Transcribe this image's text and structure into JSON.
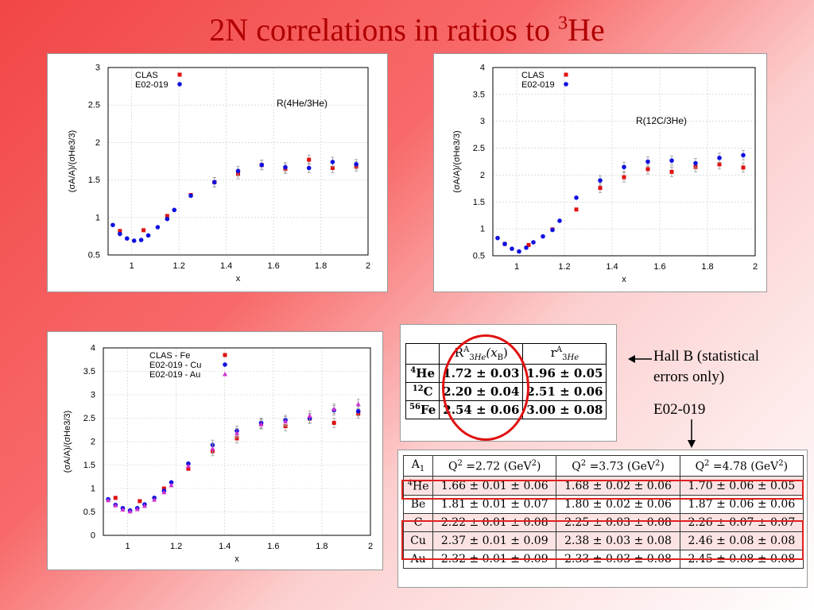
{
  "slide": {
    "title_main": "2N correlations in ratios to ",
    "title_sup": "3",
    "title_end": "He"
  },
  "colors": {
    "clas": "#e01010",
    "e02019": "#1010e0",
    "au": "#d030d0",
    "ring": "#e01010"
  },
  "chart_data": [
    {
      "type": "scatter",
      "annotation": "R(4He/3He)",
      "xlabel": "x",
      "ylabel": "(σA/A)/(σHe3/3)",
      "xlim": [
        0.9,
        2.0
      ],
      "ylim": [
        0.5,
        3.0
      ],
      "xticks": [
        "1",
        "1.2",
        "1.4",
        "1.6",
        "1.8",
        "2"
      ],
      "yticks": [
        "0.5",
        "1",
        "1.5",
        "2",
        "2.5",
        "3"
      ],
      "grid": true,
      "legend": "top-left",
      "series": [
        {
          "name": "CLAS",
          "marker": "square",
          "x": [
            0.95,
            1.05,
            1.15,
            1.25,
            1.35,
            1.45,
            1.55,
            1.65,
            1.75,
            1.85,
            1.95
          ],
          "y": [
            0.82,
            0.83,
            1.02,
            1.3,
            1.47,
            1.58,
            1.7,
            1.65,
            1.77,
            1.66,
            1.68
          ]
        },
        {
          "name": "E02-019",
          "marker": "circle",
          "x": [
            0.92,
            0.95,
            0.98,
            1.01,
            1.04,
            1.07,
            1.11,
            1.15,
            1.18,
            1.25,
            1.35,
            1.45,
            1.55,
            1.65,
            1.75,
            1.85,
            1.95
          ],
          "y": [
            0.9,
            0.78,
            0.72,
            0.69,
            0.7,
            0.76,
            0.87,
            0.98,
            1.1,
            1.29,
            1.47,
            1.62,
            1.7,
            1.67,
            1.66,
            1.74,
            1.71
          ]
        }
      ]
    },
    {
      "type": "scatter",
      "annotation": "R(12C/3He)",
      "xlabel": "x",
      "ylabel": "(σA/A)/(σHe3/3)",
      "xlim": [
        0.9,
        2.0
      ],
      "ylim": [
        0.5,
        4.0
      ],
      "xticks": [
        "1",
        "1.2",
        "1.4",
        "1.6",
        "1.8",
        "2"
      ],
      "yticks": [
        "0.5",
        "1",
        "1.5",
        "2",
        "2.5",
        "3",
        "3.5",
        "4"
      ],
      "grid": true,
      "legend": "top-left",
      "series": [
        {
          "name": "CLAS",
          "marker": "square",
          "x": [
            0.95,
            1.05,
            1.15,
            1.25,
            1.35,
            1.45,
            1.55,
            1.65,
            1.75,
            1.85,
            1.95
          ],
          "y": [
            0.72,
            0.7,
            0.99,
            1.36,
            1.76,
            1.96,
            2.11,
            2.06,
            2.15,
            2.2,
            2.14
          ]
        },
        {
          "name": "E02-019",
          "marker": "circle",
          "x": [
            0.92,
            0.95,
            0.98,
            1.01,
            1.04,
            1.07,
            1.11,
            1.15,
            1.18,
            1.25,
            1.35,
            1.45,
            1.55,
            1.65,
            1.75,
            1.85,
            1.95
          ],
          "y": [
            0.83,
            0.72,
            0.63,
            0.58,
            0.65,
            0.75,
            0.86,
            0.98,
            1.15,
            1.58,
            1.9,
            2.15,
            2.25,
            2.27,
            2.22,
            2.32,
            2.37
          ]
        }
      ]
    },
    {
      "type": "scatter",
      "xlabel": "x",
      "ylabel": "(σA/A)/(σHe3/3)",
      "xlim": [
        0.9,
        2.0
      ],
      "ylim": [
        0,
        4.0
      ],
      "xticks": [
        "1",
        "1.2",
        "1.4",
        "1.6",
        "1.8",
        "2"
      ],
      "yticks": [
        "0",
        "0.5",
        "1",
        "1.5",
        "2",
        "2.5",
        "3",
        "3.5",
        "4"
      ],
      "grid": true,
      "legend": "top-right",
      "series": [
        {
          "name": "CLAS - Fe",
          "marker": "square",
          "x": [
            0.95,
            1.05,
            1.15,
            1.25,
            1.35,
            1.45,
            1.55,
            1.65,
            1.75,
            1.85,
            1.95
          ],
          "y": [
            0.8,
            0.73,
            1.0,
            1.42,
            1.8,
            2.07,
            2.38,
            2.33,
            2.49,
            2.4,
            2.6
          ]
        },
        {
          "name": "E02-019 - Cu",
          "marker": "circle",
          "x": [
            0.92,
            0.95,
            0.98,
            1.01,
            1.04,
            1.07,
            1.11,
            1.15,
            1.18,
            1.25,
            1.35,
            1.45,
            1.55,
            1.65,
            1.75,
            1.85,
            1.95
          ],
          "y": [
            0.77,
            0.65,
            0.58,
            0.53,
            0.58,
            0.66,
            0.8,
            0.95,
            1.13,
            1.53,
            1.93,
            2.23,
            2.4,
            2.46,
            2.5,
            2.67,
            2.65
          ]
        },
        {
          "name": "E02-019 - Au",
          "marker": "triangle",
          "x": [
            0.92,
            0.95,
            0.98,
            1.01,
            1.04,
            1.07,
            1.11,
            1.15,
            1.18,
            1.25,
            1.35,
            1.45,
            1.55,
            1.65,
            1.75,
            1.85,
            1.95
          ],
          "y": [
            0.75,
            0.64,
            0.55,
            0.51,
            0.56,
            0.63,
            0.76,
            0.92,
            1.07,
            1.48,
            1.85,
            2.18,
            2.37,
            2.43,
            2.55,
            2.7,
            2.8
          ]
        }
      ]
    }
  ],
  "hallb_table": {
    "col1_base": "R",
    "col1_sup": "A",
    "col1_sub": "3",
    "col1_sub2": "He",
    "col1_arg": "(x",
    "col1_arg_sub": "B",
    "col1_close": ")",
    "col2_base": "r",
    "col2_sup": "A",
    "col2_sub": "3",
    "col2_sub2": "He",
    "rows": [
      {
        "sup": "4",
        "el": "He",
        "R": "1.72 ± 0.03",
        "r": "1.96 ± 0.05"
      },
      {
        "sup": "12",
        "el": "C",
        "R": "2.20 ± 0.04",
        "r": "2.51 ± 0.06"
      },
      {
        "sup": "56",
        "el": "Fe",
        "R": "2.54 ± 0.06",
        "r": "3.00 ± 0.08"
      }
    ]
  },
  "hallb_note": {
    "line1": "Hall B (statistical",
    "line2": "errors only)"
  },
  "e02019_note": "E02-019",
  "e02019_table": {
    "head_a": "A",
    "head_a_sub": "1",
    "q_label": "Q",
    "q_sup": "2",
    "unit": "(GeV",
    "unit_sup": "2",
    "unit_close": ")",
    "q_values": [
      "=2.72",
      "=3.73",
      "=4.78"
    ],
    "rows": [
      {
        "sup": "4",
        "el": "He",
        "vals": [
          "1.66 ± 0.01 ± 0.06",
          "1.68 ± 0.02 ± 0.06",
          "1.70 ± 0.06 ± 0.05"
        ],
        "highlight": true
      },
      {
        "sup": "",
        "el": "Be",
        "vals": [
          "1.81 ± 0.01 ± 0.07",
          "1.80 ± 0.02 ± 0.06",
          "1.87 ± 0.06 ± 0.06"
        ],
        "highlight": false
      },
      {
        "sup": "",
        "el": "C",
        "vals": [
          "2.22 ± 0.01 ± 0.08",
          "2.25 ± 0.03 ± 0.08",
          "2.26 ± 0.07 ± 0.07"
        ],
        "highlight": true
      },
      {
        "sup": "",
        "el": "Cu",
        "vals": [
          "2.37 ± 0.01 ± 0.09",
          "2.38 ± 0.03 ± 0.08",
          "2.46 ± 0.08 ± 0.08"
        ],
        "highlight": true
      },
      {
        "sup": "",
        "el": "Au",
        "vals": [
          "2.32 ± 0.01 ± 0.09",
          "2.33 ± 0.03 ± 0.08",
          "2.45 ± 0.08 ± 0.08"
        ],
        "highlight": false
      }
    ]
  }
}
